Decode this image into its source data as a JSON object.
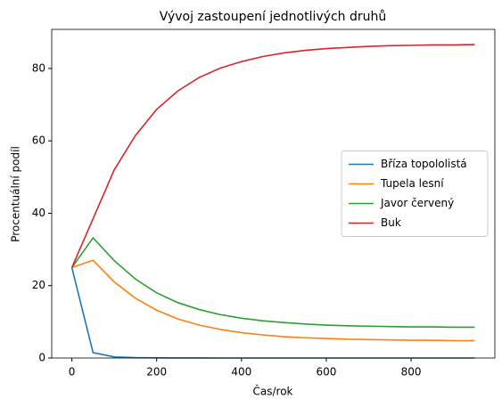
{
  "chart_data": {
    "type": "line",
    "title": "Vývoj zastoupení jednotlivých druhů",
    "xlabel": "Čas/rok",
    "ylabel": "Procentuální podíl",
    "x": [
      0,
      50,
      100,
      150,
      200,
      250,
      300,
      350,
      400,
      450,
      500,
      550,
      600,
      650,
      700,
      750,
      800,
      850,
      900,
      950
    ],
    "series": [
      {
        "name": "Bříza topololistá",
        "color": "#1f77b4",
        "values": [
          25,
          1.5,
          0.3,
          0.1,
          0.05,
          0.02,
          0.01,
          0,
          0,
          0,
          0,
          0,
          0,
          0,
          0,
          0,
          0,
          0,
          0,
          0
        ]
      },
      {
        "name": "Tupela lesní",
        "color": "#ff7f0e",
        "values": [
          25,
          27,
          21,
          16.5,
          13.2,
          10.8,
          9.1,
          7.9,
          7.0,
          6.4,
          5.9,
          5.6,
          5.4,
          5.2,
          5.1,
          5.0,
          4.9,
          4.9,
          4.8,
          4.8
        ]
      },
      {
        "name": "Javor červený",
        "color": "#2ca02c",
        "values": [
          25,
          33.2,
          26.9,
          21.8,
          18.0,
          15.3,
          13.4,
          12.0,
          11.0,
          10.3,
          9.8,
          9.4,
          9.1,
          8.9,
          8.8,
          8.7,
          8.6,
          8.6,
          8.5,
          8.5
        ]
      },
      {
        "name": "Buk",
        "color": "#d62728",
        "values": [
          25,
          38.5,
          52,
          61.5,
          68.7,
          73.8,
          77.5,
          80.1,
          81.9,
          83.3,
          84.3,
          85.0,
          85.5,
          85.8,
          86.1,
          86.3,
          86.4,
          86.5,
          86.5,
          86.6
        ]
      }
    ],
    "xlim": [
      -47.5,
      997.5
    ],
    "xticks": [
      0,
      200,
      400,
      600,
      800
    ],
    "ylim": [
      0,
      90.8
    ],
    "yticks": [
      0,
      20,
      40,
      60,
      80
    ],
    "legend": "center right"
  }
}
